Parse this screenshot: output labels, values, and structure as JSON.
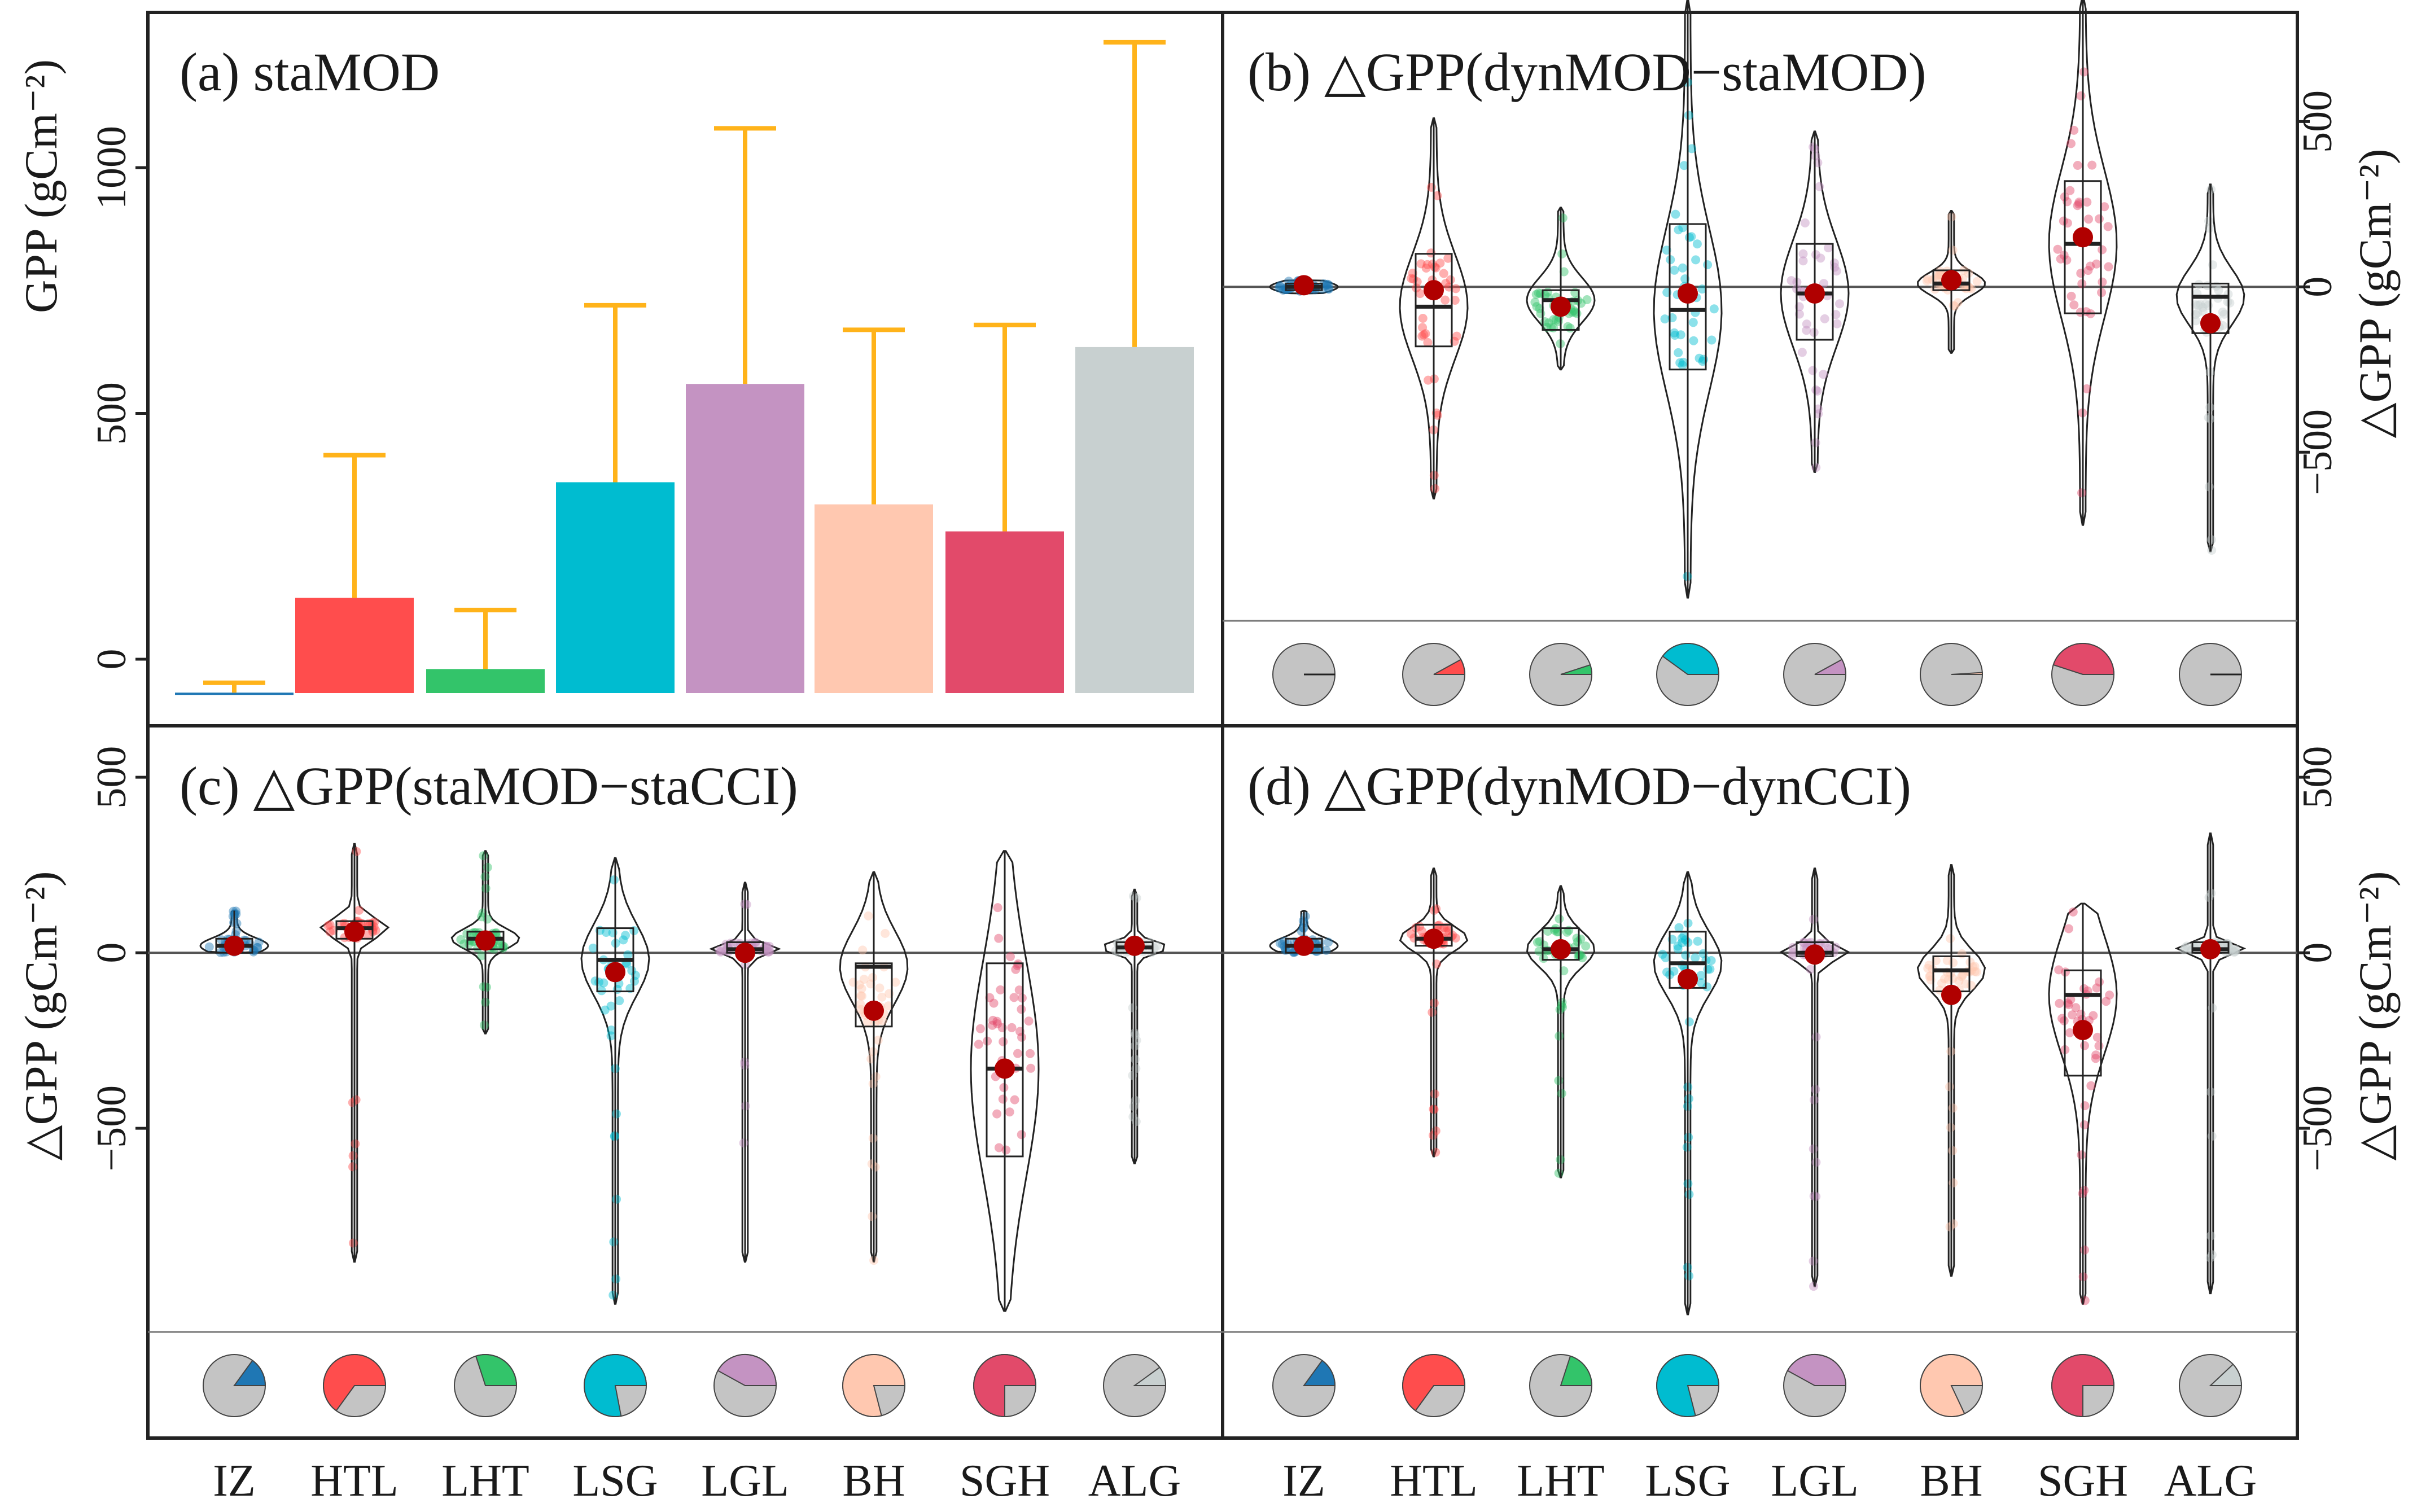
{
  "figure": {
    "categories": [
      "IZ",
      "HTL",
      "LHT",
      "LSG",
      "LGL",
      "BH",
      "SGH",
      "ALG"
    ],
    "colors": [
      "#1f77b4",
      "#ff4d4d",
      "#33c46a",
      "#00bcd0",
      "#c493c2",
      "#ffc8b0",
      "#e24a6a",
      "#c8d0d0"
    ],
    "error_bar_color": "#ffb31a"
  },
  "chart_data": [
    {
      "id": "a",
      "type": "bar",
      "title": "(a) staMOD",
      "ylabel": "GPP (gCm⁻²)",
      "ylim": [
        -70,
        1290
      ],
      "yticks": [
        0,
        500,
        1000
      ],
      "categories": [
        "IZ",
        "HTL",
        "LHT",
        "LSG",
        "LGL",
        "BH",
        "SGH",
        "ALG"
      ],
      "values": [
        -68,
        125,
        -20,
        360,
        560,
        315,
        260,
        635
      ],
      "errors": [
        20,
        290,
        120,
        360,
        520,
        355,
        420,
        620
      ]
    },
    {
      "id": "b",
      "type": "violin-box",
      "title": "(b) △GPP(dynMOD−staMOD)",
      "ylabel": "△GPP (gCm⁻²)",
      "ylim": [
        -1010,
        830
      ],
      "yticks": [
        -500,
        0,
        500
      ],
      "categories": [
        "IZ",
        "HTL",
        "LHT",
        "LSG",
        "LGL",
        "BH",
        "SGH",
        "ALG"
      ],
      "mean": [
        5,
        -10,
        -60,
        -20,
        -20,
        20,
        150,
        -110
      ],
      "median": [
        0,
        -60,
        -40,
        -70,
        -20,
        10,
        130,
        -30
      ],
      "q1": [
        -10,
        -180,
        -130,
        -250,
        -160,
        -10,
        -80,
        -140
      ],
      "q3": [
        10,
        100,
        -10,
        190,
        130,
        50,
        320,
        10
      ],
      "min": [
        -20,
        -640,
        -250,
        -940,
        -560,
        -200,
        -720,
        -800
      ],
      "max": [
        20,
        510,
        240,
        870,
        470,
        230,
        880,
        310
      ],
      "pie_fractions": [
        0.0,
        0.08,
        0.05,
        0.4,
        0.08,
        0.01,
        0.45,
        0.0
      ]
    },
    {
      "id": "c",
      "type": "violin-box",
      "title": "(c) △GPP(staMOD−staCCI)",
      "ylabel": "△GPP (gCm⁻²)",
      "ylim": [
        -1080,
        640
      ],
      "yticks": [
        -500,
        0,
        500
      ],
      "categories": [
        "IZ",
        "HTL",
        "LHT",
        "LSG",
        "LGL",
        "BH",
        "SGH",
        "ALG"
      ],
      "mean": [
        20,
        60,
        35,
        -55,
        0,
        -165,
        -330,
        20
      ],
      "median": [
        20,
        70,
        40,
        -20,
        10,
        -40,
        -330,
        15
      ],
      "q1": [
        0,
        40,
        10,
        -110,
        0,
        -210,
        -580,
        0
      ],
      "q3": [
        40,
        90,
        60,
        70,
        30,
        -30,
        -30,
        30
      ],
      "min": [
        0,
        -880,
        -230,
        -1000,
        -880,
        -880,
        -1020,
        -600
      ],
      "max": [
        120,
        310,
        290,
        270,
        200,
        230,
        290,
        180
      ],
      "pie_fractions": [
        0.15,
        0.65,
        0.3,
        0.78,
        0.42,
        0.79,
        0.75,
        0.1
      ]
    },
    {
      "id": "d",
      "type": "violin-box",
      "title": "(d) △GPP(dynMOD−dynCCI)",
      "ylabel": "△GPP (gCm⁻²)",
      "ylim": [
        -1080,
        640
      ],
      "yticks": [
        -500,
        0,
        500
      ],
      "categories": [
        "IZ",
        "HTL",
        "LHT",
        "LSG",
        "LGL",
        "BH",
        "SGH",
        "ALG"
      ],
      "mean": [
        20,
        40,
        10,
        -75,
        -5,
        -120,
        -220,
        10
      ],
      "median": [
        20,
        40,
        10,
        -30,
        0,
        -50,
        -120,
        10
      ],
      "q1": [
        0,
        20,
        -20,
        -100,
        -10,
        -110,
        -350,
        0
      ],
      "q3": [
        40,
        80,
        70,
        60,
        30,
        -10,
        -50,
        30
      ],
      "min": [
        0,
        -580,
        -640,
        -1030,
        -950,
        -920,
        -1000,
        -970
      ],
      "max": [
        120,
        240,
        190,
        230,
        240,
        250,
        140,
        340
      ],
      "pie_fractions": [
        0.15,
        0.65,
        0.2,
        0.79,
        0.42,
        0.82,
        0.75,
        0.12
      ]
    }
  ]
}
